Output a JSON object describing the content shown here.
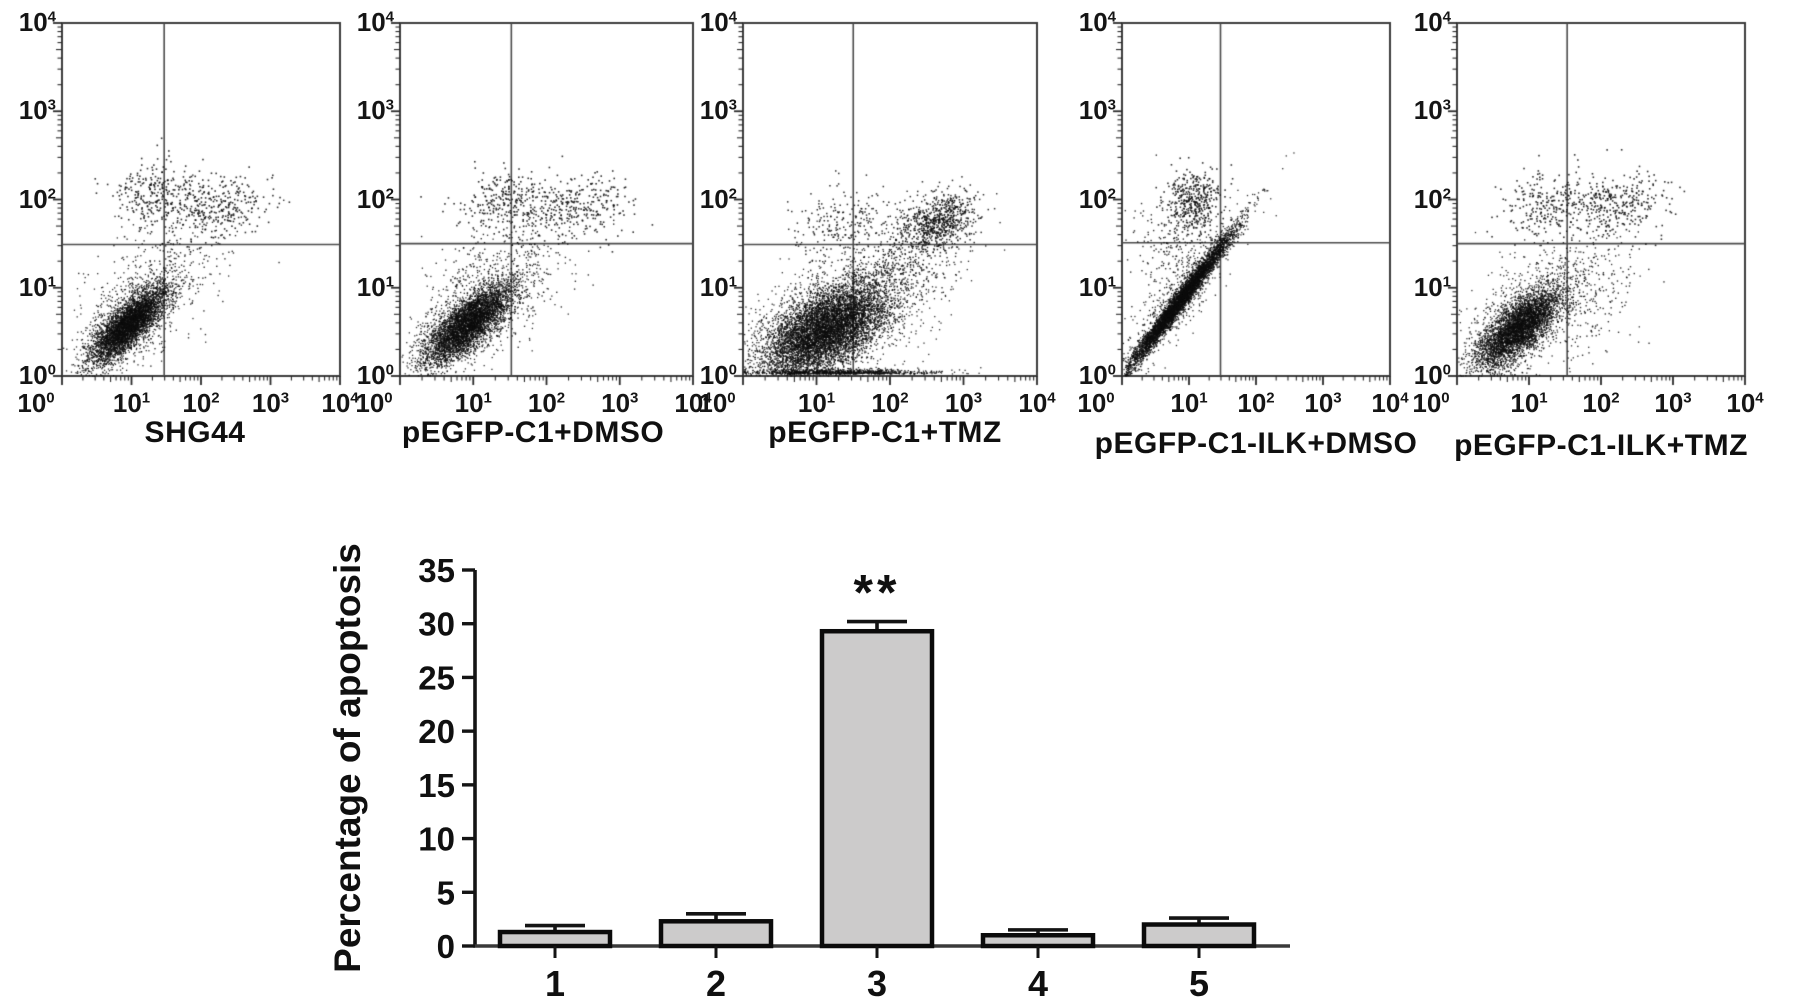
{
  "figure": {
    "background": "#ffffff",
    "ink": "#111111",
    "tick_base": "10"
  },
  "chart_data": [
    {
      "type": "scatter",
      "title": "SHG44",
      "scale": "log10",
      "range_log": [
        0,
        4
      ],
      "x_tick_exponents": [
        0,
        1,
        2,
        3,
        4
      ],
      "y_tick_exponents": [
        0,
        1,
        2,
        3,
        4
      ],
      "quadrant_gate_log": {
        "x": 1.47,
        "y": 1.49
      },
      "point_color": "#0d0d0d",
      "clusters": [
        {
          "name": "main-live-cluster",
          "cx": 0.95,
          "cy": 0.58,
          "sx": 0.27,
          "sy": 0.21,
          "rho": 0.78,
          "n": 4200,
          "size": 1.3
        },
        {
          "name": "halo",
          "cx": 1.0,
          "cy": 0.68,
          "sx": 0.45,
          "sy": 0.36,
          "rho": 0.6,
          "n": 700,
          "size": 1.3
        },
        {
          "name": "upper-cloud-left",
          "cx": 1.3,
          "cy": 2.05,
          "sx": 0.3,
          "sy": 0.18,
          "rho": 0.05,
          "n": 240,
          "size": 1.6
        },
        {
          "name": "upper-cloud-right",
          "cx": 2.15,
          "cy": 1.95,
          "sx": 0.42,
          "sy": 0.17,
          "rho": 0.05,
          "n": 320,
          "size": 1.6
        },
        {
          "name": "mid-scatter",
          "cx": 1.55,
          "cy": 1.25,
          "sx": 0.5,
          "sy": 0.38,
          "rho": 0.3,
          "n": 240,
          "size": 1.4
        }
      ]
    },
    {
      "type": "scatter",
      "title": "pEGFP-C1+DMSO",
      "scale": "log10",
      "range_log": [
        0,
        4
      ],
      "x_tick_exponents": [
        0,
        1,
        2,
        3,
        4
      ],
      "y_tick_exponents": [
        0,
        1,
        2,
        3,
        4
      ],
      "quadrant_gate_log": {
        "x": 1.52,
        "y": 1.5
      },
      "point_color": "#0d0d0d",
      "clusters": [
        {
          "name": "main-live-cluster",
          "cx": 0.93,
          "cy": 0.6,
          "sx": 0.3,
          "sy": 0.23,
          "rho": 0.76,
          "n": 4300,
          "size": 1.3
        },
        {
          "name": "halo",
          "cx": 1.02,
          "cy": 0.7,
          "sx": 0.48,
          "sy": 0.37,
          "rho": 0.6,
          "n": 750,
          "size": 1.3
        },
        {
          "name": "upper-cloud-left",
          "cx": 1.4,
          "cy": 2.0,
          "sx": 0.32,
          "sy": 0.18,
          "rho": 0.05,
          "n": 260,
          "size": 1.6
        },
        {
          "name": "upper-cloud-right",
          "cx": 2.4,
          "cy": 1.93,
          "sx": 0.35,
          "sy": 0.17,
          "rho": 0.05,
          "n": 300,
          "size": 1.6
        },
        {
          "name": "mid-scatter",
          "cx": 1.45,
          "cy": 1.25,
          "sx": 0.5,
          "sy": 0.38,
          "rho": 0.3,
          "n": 280,
          "size": 1.4
        }
      ]
    },
    {
      "type": "scatter",
      "title": "pEGFP-C1+TMZ",
      "scale": "log10",
      "range_log": [
        0,
        4
      ],
      "x_tick_exponents": [
        0,
        1,
        2,
        3,
        4
      ],
      "y_tick_exponents": [
        0,
        1,
        2,
        3,
        4
      ],
      "quadrant_gate_log": {
        "x": 1.5,
        "y": 1.49
      },
      "point_color": "#0d0d0d",
      "clusters": [
        {
          "name": "main-broad-cluster",
          "cx": 1.1,
          "cy": 0.52,
          "sx": 0.42,
          "sy": 0.27,
          "rho": 0.55,
          "n": 6500,
          "size": 1.3
        },
        {
          "name": "halo",
          "cx": 1.25,
          "cy": 0.6,
          "sx": 0.65,
          "sy": 0.4,
          "rho": 0.5,
          "n": 1400,
          "size": 1.3
        },
        {
          "name": "apoptotic-upper-right",
          "cx": 2.62,
          "cy": 1.75,
          "sx": 0.28,
          "sy": 0.17,
          "rho": 0.35,
          "n": 750,
          "size": 1.5
        },
        {
          "name": "bridge",
          "cx": 2.05,
          "cy": 1.15,
          "sx": 0.45,
          "sy": 0.33,
          "rho": 0.5,
          "n": 420,
          "size": 1.4
        },
        {
          "name": "upper-left-sparse",
          "cx": 1.35,
          "cy": 1.7,
          "sx": 0.4,
          "sy": 0.22,
          "rho": 0.2,
          "n": 240,
          "size": 1.5
        },
        {
          "name": "bottom-edge-smear",
          "edge": "bottom",
          "cx": 1.3,
          "sx": 0.65,
          "n": 900,
          "y0": 0.03,
          "size": 1.3
        }
      ]
    },
    {
      "type": "scatter",
      "title": "pEGFP-C1-ILK+DMSO",
      "scale": "log10",
      "range_log": [
        0,
        4
      ],
      "x_tick_exponents": [
        0,
        1,
        2,
        3,
        4
      ],
      "y_tick_exponents": [
        0,
        1,
        2,
        3,
        4
      ],
      "quadrant_gate_log": {
        "x": 1.47,
        "y": 1.51
      },
      "point_color": "#0d0d0d",
      "clusters": [
        {
          "name": "diagonal-streak",
          "cx": 0.85,
          "cy": 0.85,
          "sx": 0.4,
          "sy": 0.4,
          "rho": 0.985,
          "n": 5000,
          "size": 1.3
        },
        {
          "name": "streak-halo",
          "cx": 0.9,
          "cy": 0.95,
          "sx": 0.45,
          "sy": 0.45,
          "rho": 0.9,
          "n": 600,
          "size": 1.3
        },
        {
          "name": "upper-left-cloud",
          "cx": 1.05,
          "cy": 2.0,
          "sx": 0.2,
          "sy": 0.17,
          "rho": 0.1,
          "n": 380,
          "size": 1.6
        },
        {
          "name": "left-sparse",
          "cx": 0.75,
          "cy": 1.5,
          "sx": 0.33,
          "sy": 0.3,
          "rho": 0.2,
          "n": 220,
          "size": 1.4
        }
      ]
    },
    {
      "type": "scatter",
      "title": "pEGFP-C1-ILK+TMZ",
      "scale": "log10",
      "range_log": [
        0,
        4
      ],
      "x_tick_exponents": [
        0,
        1,
        2,
        3,
        4
      ],
      "y_tick_exponents": [
        0,
        1,
        2,
        3,
        4
      ],
      "quadrant_gate_log": {
        "x": 1.53,
        "y": 1.5
      },
      "point_color": "#0d0d0d",
      "clusters": [
        {
          "name": "main-live-cluster",
          "cx": 0.85,
          "cy": 0.55,
          "sx": 0.29,
          "sy": 0.23,
          "rho": 0.72,
          "n": 4200,
          "size": 1.3
        },
        {
          "name": "halo",
          "cx": 0.95,
          "cy": 0.62,
          "sx": 0.5,
          "sy": 0.38,
          "rho": 0.5,
          "n": 650,
          "size": 1.3
        },
        {
          "name": "upper-cloud-left",
          "cx": 1.25,
          "cy": 1.95,
          "sx": 0.3,
          "sy": 0.18,
          "rho": 0.05,
          "n": 240,
          "size": 1.6
        },
        {
          "name": "upper-cloud-right",
          "cx": 2.2,
          "cy": 1.95,
          "sx": 0.38,
          "sy": 0.17,
          "rho": 0.05,
          "n": 320,
          "size": 1.6
        },
        {
          "name": "mid-scatter",
          "cx": 1.6,
          "cy": 1.0,
          "sx": 0.5,
          "sy": 0.35,
          "rho": 0.3,
          "n": 300,
          "size": 1.4
        }
      ]
    },
    {
      "type": "bar",
      "ylabel": "Percentage of apoptosis",
      "categories": [
        "1",
        "2",
        "3",
        "4",
        "5"
      ],
      "values": [
        1.3,
        2.3,
        29.3,
        1.0,
        2.0
      ],
      "errors": [
        0.6,
        0.7,
        0.9,
        0.5,
        0.6
      ],
      "ylim": [
        0,
        35
      ],
      "ytick_step": 5,
      "grid": "off",
      "significance": {
        "category_index": 2,
        "label": "**"
      },
      "bar_fill": "#cccbcb",
      "bar_stroke": "#0b0b0b"
    }
  ]
}
